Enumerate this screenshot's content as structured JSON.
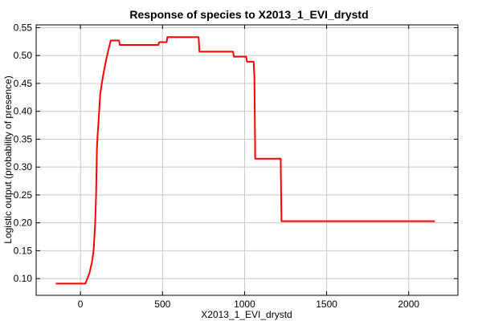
{
  "chart_data": {
    "type": "line",
    "title": "Response of species to X2013_1_EVI_drystd",
    "xlabel": "X2013_1_EVI_drystd",
    "ylabel": "Logistic output (probability of presence)",
    "xlim": [
      -270,
      2300
    ],
    "ylim": [
      0.07,
      0.555
    ],
    "xticks": [
      0,
      500,
      1000,
      1500,
      2000
    ],
    "yticks": [
      0.1,
      0.15,
      0.2,
      0.25,
      0.3,
      0.35,
      0.4,
      0.45,
      0.5,
      0.55
    ],
    "xtick_labels": [
      "0",
      "500",
      "1000",
      "1500",
      "2000"
    ],
    "ytick_labels": [
      "0.10",
      "0.15",
      "0.20",
      "0.25",
      "0.30",
      "0.35",
      "0.40",
      "0.45",
      "0.50",
      "0.55"
    ],
    "grid": true,
    "series": [
      {
        "color": "#ff0000",
        "x": [
          -150,
          30,
          55,
          70,
          80,
          90,
          95,
          100,
          105,
          110,
          120,
          130,
          140,
          155,
          170,
          185,
          195,
          235,
          240,
          260,
          265,
          475,
          480,
          525,
          530,
          720,
          725,
          930,
          935,
          1010,
          1015,
          1055,
          1060,
          1065,
          1070,
          1220,
          1225,
          2160
        ],
        "y": [
          0.091,
          0.091,
          0.11,
          0.13,
          0.15,
          0.2,
          0.25,
          0.33,
          0.36,
          0.38,
          0.43,
          0.45,
          0.468,
          0.49,
          0.51,
          0.527,
          0.527,
          0.527,
          0.519,
          0.519,
          0.519,
          0.519,
          0.524,
          0.524,
          0.533,
          0.533,
          0.507,
          0.507,
          0.498,
          0.498,
          0.489,
          0.489,
          0.462,
          0.315,
          0.315,
          0.315,
          0.203,
          0.203
        ]
      }
    ]
  }
}
